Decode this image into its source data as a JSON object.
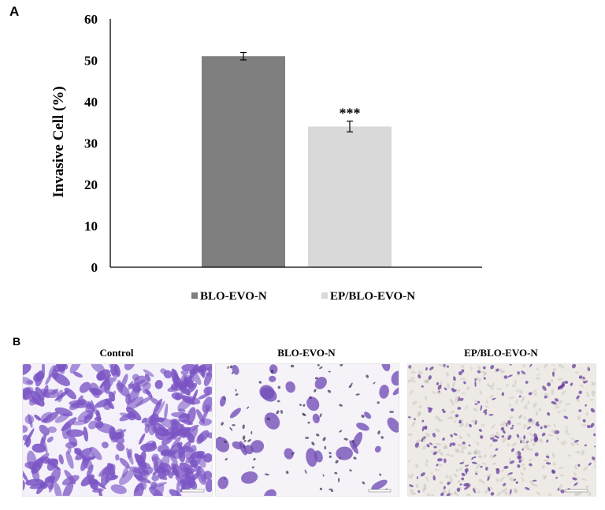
{
  "panel_a_label": "A",
  "panel_b_label": "B",
  "chart_data": {
    "type": "bar",
    "categories": [
      "BLO-EVO-N",
      "EP/BLO-EVO-N"
    ],
    "values": [
      51,
      34
    ],
    "errors": [
      0.9,
      1.3
    ],
    "annotations": [
      "",
      "***"
    ],
    "ylabel": "Invasive Cell  (%)",
    "ylim": [
      0,
      60
    ],
    "yticks": [
      "0",
      "10",
      "20",
      "30",
      "40",
      "50",
      "60"
    ],
    "colors": [
      "#7f7f7f",
      "#d9d9d9"
    ],
    "legend": [
      "BLO-EVO-N",
      "EP/BLO-EVO-N"
    ],
    "legend_position": "bottom",
    "grid": false
  },
  "images": [
    {
      "label": "Control",
      "stain_color": "#7b55c4",
      "background": "#f4f1fb"
    },
    {
      "label": "BLO-EVO-N",
      "stain_color": "#7450b8",
      "background": "#f5f2f8"
    },
    {
      "label": "EP/BLO-EVO-N",
      "stain_color": "#6a3f9e",
      "background": "#eeebe7"
    }
  ]
}
